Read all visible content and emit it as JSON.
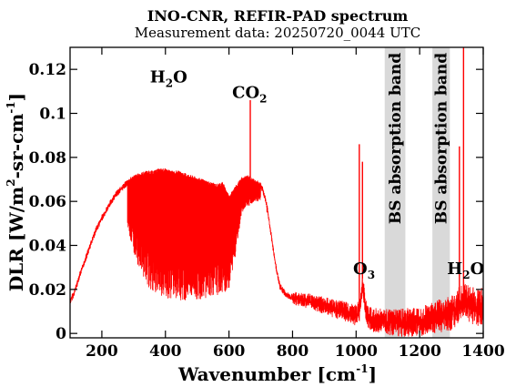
{
  "chart_data": {
    "type": "line",
    "title": "INO-CNR, REFIR-PAD spectrum",
    "subtitle": "Measurement data: 20250720_0044 UTC",
    "xlabel": {
      "main": "Wavenumber [cm",
      "sup": "-1",
      "tail": "]"
    },
    "ylabel": {
      "main": "DLR [W/m",
      "sup1": "2",
      "mid": "-sr-cm",
      "sup2": "-1",
      "tail": "]"
    },
    "xlim": [
      100,
      1400
    ],
    "ylim": [
      -0.002,
      0.13
    ],
    "xticks": [
      200,
      400,
      600,
      800,
      1000,
      1200,
      1400
    ],
    "xtick_labels": [
      "200",
      "400",
      "600",
      "800",
      "1000",
      "1200",
      "1400"
    ],
    "yticks": [
      0,
      0.02,
      0.04,
      0.06,
      0.08,
      0.1,
      0.12
    ],
    "ytick_labels": [
      "0",
      "0.02",
      "0.04",
      "0.06",
      "0.08",
      "0.1",
      "0.12"
    ],
    "grid": false,
    "line_color": "#ff0000",
    "band_color": "#d9d9d9",
    "annotations": [
      {
        "base": "H",
        "sub": "2",
        "tail": "O",
        "x": 410,
        "y": 0.114
      },
      {
        "base": "CO",
        "sub": "2",
        "tail": "",
        "x": 665,
        "y": 0.107
      },
      {
        "base": "O",
        "sub": "3",
        "tail": "",
        "x": 1025,
        "y": 0.027
      },
      {
        "base": "H",
        "sub": "2",
        "tail": "O",
        "x": 1345,
        "y": 0.027
      }
    ],
    "bands": [
      {
        "label": "BS absorption band",
        "x0": 1090,
        "x1": 1155
      },
      {
        "label": "BS absorption band",
        "x0": 1240,
        "x1": 1295
      }
    ],
    "series": [
      {
        "values_x": [
          100,
          110,
          120,
          130,
          140,
          150,
          160,
          170,
          180,
          190,
          200,
          220,
          240,
          260,
          280,
          300,
          320,
          340,
          360,
          380,
          400,
          420,
          440,
          460,
          480,
          500,
          520,
          540,
          560,
          580,
          600,
          620,
          640,
          660,
          680,
          700,
          710,
          720,
          730,
          740,
          750,
          760,
          780,
          800,
          850,
          900,
          950,
          1000,
          1010,
          1020,
          1030,
          1040,
          1050,
          1080,
          1100,
          1150,
          1200,
          1250,
          1300,
          1320,
          1340,
          1350,
          1360,
          1380,
          1400
        ],
        "values_y": [
          0.015,
          0.018,
          0.022,
          0.027,
          0.031,
          0.035,
          0.039,
          0.043,
          0.047,
          0.05,
          0.053,
          0.058,
          0.063,
          0.066,
          0.069,
          0.071,
          0.072,
          0.073,
          0.073,
          0.074,
          0.074,
          0.073,
          0.073,
          0.072,
          0.071,
          0.07,
          0.069,
          0.068,
          0.067,
          0.068,
          0.062,
          0.066,
          0.07,
          0.071,
          0.069,
          0.068,
          0.064,
          0.058,
          0.048,
          0.038,
          0.029,
          0.022,
          0.018,
          0.017,
          0.016,
          0.014,
          0.012,
          0.01,
          0.012,
          0.025,
          0.012,
          0.009,
          0.008,
          0.008,
          0.007,
          0.007,
          0.008,
          0.01,
          0.012,
          0.015,
          0.018,
          0.017,
          0.016,
          0.015,
          0.015
        ],
        "envelope_low_x": [
          280,
          300,
          350,
          400,
          450,
          500,
          550,
          580,
          600,
          620,
          640,
          680,
          700
        ],
        "envelope_low_y": [
          0.05,
          0.035,
          0.02,
          0.016,
          0.015,
          0.015,
          0.017,
          0.018,
          0.02,
          0.035,
          0.055,
          0.06,
          0.06
        ]
      }
    ],
    "spikes": [
      {
        "x": 667,
        "y": 0.106
      },
      {
        "x": 720,
        "y": 0.055
      },
      {
        "x": 1010,
        "y": 0.086
      },
      {
        "x": 1020,
        "y": 0.078
      },
      {
        "x": 1338,
        "y": 0.13
      },
      {
        "x": 1325,
        "y": 0.085
      }
    ]
  }
}
